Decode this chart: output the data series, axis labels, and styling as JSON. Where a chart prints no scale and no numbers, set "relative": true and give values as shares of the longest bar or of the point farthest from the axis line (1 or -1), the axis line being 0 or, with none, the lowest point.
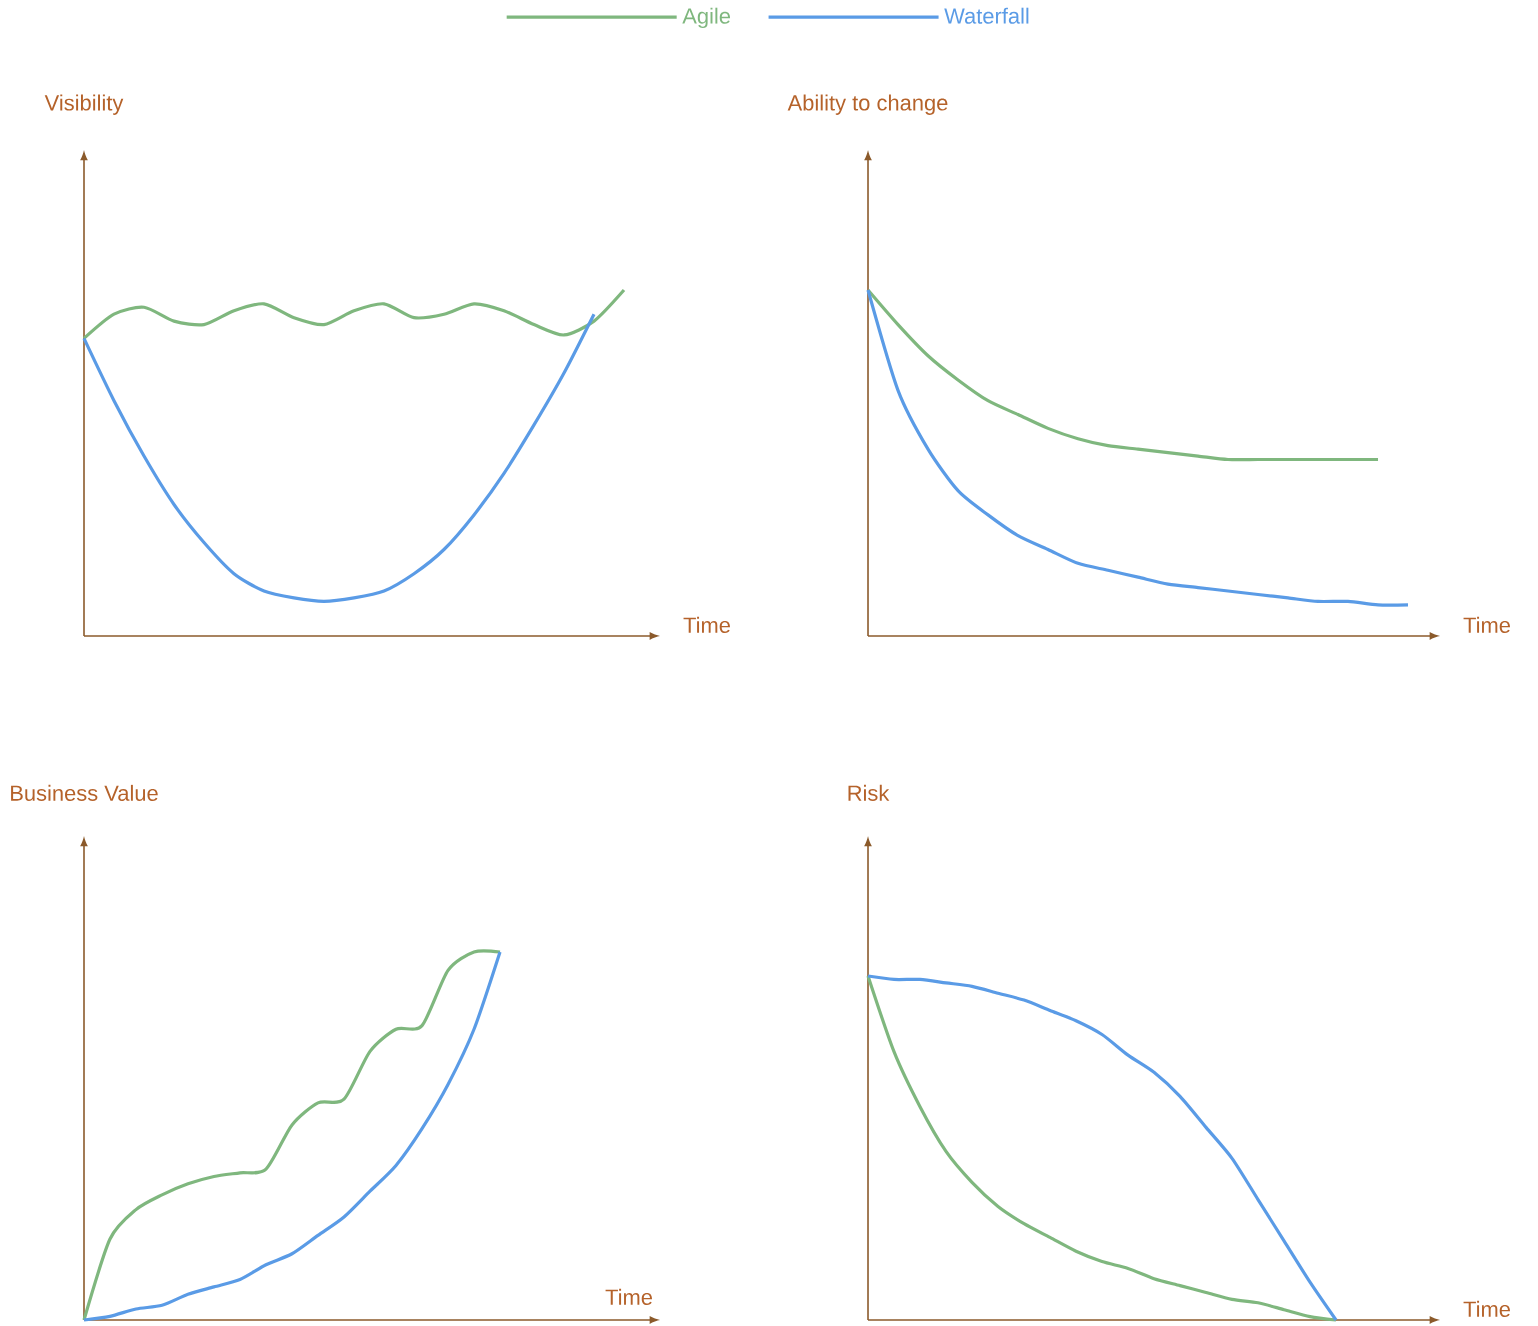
{
  "chart_data": [
    {
      "type": "line",
      "ylabel": "Visibility",
      "xlabel": "Time",
      "relative": true,
      "legend": "top",
      "categories": [
        null,
        null,
        null,
        null,
        null,
        null,
        null,
        null,
        null,
        null,
        null,
        null,
        null,
        null,
        null,
        null,
        null,
        null,
        null
      ],
      "series": [
        {
          "name": "Agile",
          "color": "#7fb77e",
          "values": [
            0.86,
            0.93,
            0.95,
            0.91,
            0.9,
            0.94,
            0.96,
            0.92,
            0.9,
            0.94,
            0.96,
            0.92,
            0.93,
            0.96,
            0.94,
            0.9,
            0.87,
            0.91,
            1.0
          ]
        },
        {
          "name": "Waterfall",
          "color": "#5a9be6",
          "values": [
            0.86,
            0.68,
            0.52,
            0.38,
            0.27,
            0.18,
            0.13,
            0.11,
            0.1,
            0.11,
            0.13,
            0.18,
            0.25,
            0.35,
            0.47,
            0.61,
            0.76,
            0.93,
            null
          ]
        }
      ]
    },
    {
      "type": "line",
      "ylabel": "Ability to change",
      "xlabel": "Time",
      "relative": true,
      "categories": [
        null,
        null,
        null,
        null,
        null,
        null,
        null,
        null,
        null,
        null,
        null,
        null,
        null,
        null,
        null,
        null,
        null,
        null,
        null
      ],
      "series": [
        {
          "color": "#7fb77e",
          "values": [
            1.0,
            0.9,
            0.81,
            0.74,
            0.68,
            0.64,
            0.6,
            0.57,
            0.55,
            0.54,
            0.53,
            0.52,
            0.51,
            0.51,
            0.51,
            0.51,
            0.51,
            0.51,
            null
          ]
        },
        {
          "color": "#5a9be6",
          "values": [
            1.0,
            0.71,
            0.54,
            0.42,
            0.35,
            0.29,
            0.25,
            0.21,
            0.19,
            0.17,
            0.15,
            0.14,
            0.13,
            0.12,
            0.11,
            0.1,
            0.1,
            0.09,
            0.09
          ]
        }
      ]
    },
    {
      "type": "line",
      "ylabel": "Business Value",
      "xlabel": "Time",
      "relative": true,
      "categories": [
        null,
        null,
        null,
        null,
        null,
        null,
        null,
        null,
        null,
        null,
        null,
        null,
        null,
        null,
        null,
        null,
        null
      ],
      "series": [
        {
          "color": "#7fb77e",
          "values": [
            0,
            0.22,
            0.3,
            0.34,
            0.37,
            0.39,
            0.4,
            0.41,
            0.53,
            0.59,
            0.6,
            0.73,
            0.79,
            0.8,
            0.95,
            1.0,
            1.0
          ]
        },
        {
          "color": "#5a9be6",
          "values": [
            0,
            0.01,
            0.03,
            0.04,
            0.07,
            0.09,
            0.11,
            0.15,
            0.18,
            0.23,
            0.28,
            0.35,
            0.42,
            0.52,
            0.64,
            0.79,
            1.0
          ]
        }
      ]
    },
    {
      "type": "line",
      "ylabel": "Risk",
      "xlabel": "Time",
      "relative": true,
      "categories": [
        null,
        null,
        null,
        null,
        null,
        null,
        null,
        null,
        null,
        null,
        null,
        null,
        null,
        null,
        null,
        null,
        null,
        null,
        null
      ],
      "series": [
        {
          "color": "#7fb77e",
          "values": [
            1.0,
            0.78,
            0.62,
            0.49,
            0.4,
            0.33,
            0.28,
            0.24,
            0.2,
            0.17,
            0.15,
            0.12,
            0.1,
            0.08,
            0.06,
            0.05,
            0.03,
            0.01,
            0
          ]
        },
        {
          "color": "#5a9be6",
          "values": [
            1.0,
            0.99,
            0.99,
            0.98,
            0.97,
            0.95,
            0.93,
            0.9,
            0.87,
            0.83,
            0.77,
            0.72,
            0.65,
            0.56,
            0.47,
            0.35,
            0.23,
            0.11,
            0
          ]
        }
      ]
    }
  ]
}
